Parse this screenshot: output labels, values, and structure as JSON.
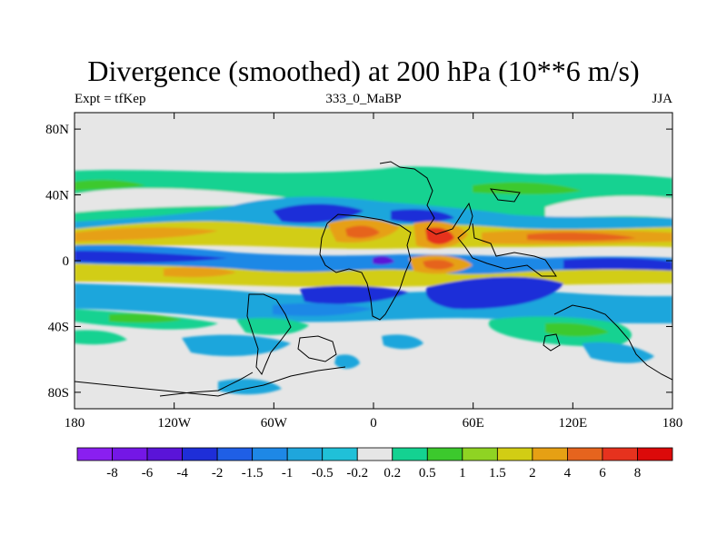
{
  "title": "Divergence (smoothed) at 200 hPa (10**6 m/s)",
  "subtitle_left": "Expt = tfKep",
  "subtitle_center": "333_0_MaBP",
  "subtitle_right": "JJA",
  "map": {
    "lon_range": [
      -180,
      180
    ],
    "lat_range": [
      -90,
      90
    ],
    "background_color": "#e6e6e6",
    "lon_ticks": [
      {
        "value": -180,
        "label": "180"
      },
      {
        "value": -120,
        "label": "120W"
      },
      {
        "value": -60,
        "label": "60W"
      },
      {
        "value": 0,
        "label": "0"
      },
      {
        "value": 60,
        "label": "60E"
      },
      {
        "value": 120,
        "label": "120E"
      },
      {
        "value": 180,
        "label": "180"
      }
    ],
    "lat_ticks": [
      {
        "value": 80,
        "label": "80N"
      },
      {
        "value": 40,
        "label": "40N"
      },
      {
        "value": 0,
        "label": "0"
      },
      {
        "value": -40,
        "label": "40S"
      },
      {
        "value": -80,
        "label": "80S"
      }
    ]
  },
  "colorbar": {
    "colors": [
      "#8a1ff0",
      "#7417e6",
      "#5a14d8",
      "#1e2ed8",
      "#1f5fe6",
      "#1e88e6",
      "#1fa6dc",
      "#20c0d8",
      "#e6e6e6",
      "#14d291",
      "#3cc92d",
      "#8fd323",
      "#d2cd14",
      "#e6a014",
      "#e6641e",
      "#e6321e",
      "#dc0a0a"
    ],
    "labels": [
      "-8",
      "-6",
      "-4",
      "-2",
      "-1.5",
      "-1",
      "-0.5",
      "-0.2",
      "0.2",
      "0.5",
      "1",
      "1.5",
      "2",
      "4",
      "6",
      "8"
    ]
  }
}
